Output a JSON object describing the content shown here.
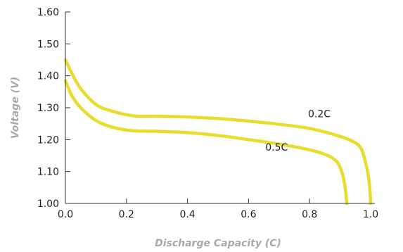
{
  "chart_data": {
    "type": "line",
    "title": "",
    "xlabel": "Discharge Capacity (C)",
    "ylabel": "Voltage (V)",
    "xlim": [
      0,
      1.0
    ],
    "ylim": [
      1.0,
      1.6
    ],
    "x_ticks": [
      "0.0",
      "0.2",
      "0.4",
      "0.6",
      "0.8",
      "1.0"
    ],
    "y_ticks": [
      "1.00",
      "1.10",
      "1.20",
      "1.30",
      "1.40",
      "1.50",
      "1.60"
    ],
    "grid": false,
    "line_color": "#e8dc2c",
    "series": [
      {
        "name": "0.2C",
        "points": [
          [
            0.0,
            1.45
          ],
          [
            0.02,
            1.41
          ],
          [
            0.05,
            1.36
          ],
          [
            0.1,
            1.31
          ],
          [
            0.15,
            1.29
          ],
          [
            0.2,
            1.278
          ],
          [
            0.24,
            1.273
          ],
          [
            0.3,
            1.273
          ],
          [
            0.4,
            1.271
          ],
          [
            0.5,
            1.266
          ],
          [
            0.6,
            1.258
          ],
          [
            0.7,
            1.248
          ],
          [
            0.8,
            1.235
          ],
          [
            0.9,
            1.21
          ],
          [
            0.95,
            1.19
          ],
          [
            0.97,
            1.17
          ],
          [
            0.98,
            1.14
          ],
          [
            0.99,
            1.1
          ],
          [
            0.997,
            1.05
          ],
          [
            1.0,
            1.0
          ]
        ]
      },
      {
        "name": "0.5C",
        "points": [
          [
            0.0,
            1.385
          ],
          [
            0.02,
            1.34
          ],
          [
            0.05,
            1.3
          ],
          [
            0.1,
            1.26
          ],
          [
            0.15,
            1.24
          ],
          [
            0.2,
            1.23
          ],
          [
            0.24,
            1.227
          ],
          [
            0.3,
            1.226
          ],
          [
            0.4,
            1.222
          ],
          [
            0.5,
            1.213
          ],
          [
            0.6,
            1.2
          ],
          [
            0.7,
            1.186
          ],
          [
            0.8,
            1.168
          ],
          [
            0.86,
            1.15
          ],
          [
            0.89,
            1.13
          ],
          [
            0.905,
            1.1
          ],
          [
            0.915,
            1.06
          ],
          [
            0.922,
            1.0
          ]
        ]
      }
    ]
  }
}
